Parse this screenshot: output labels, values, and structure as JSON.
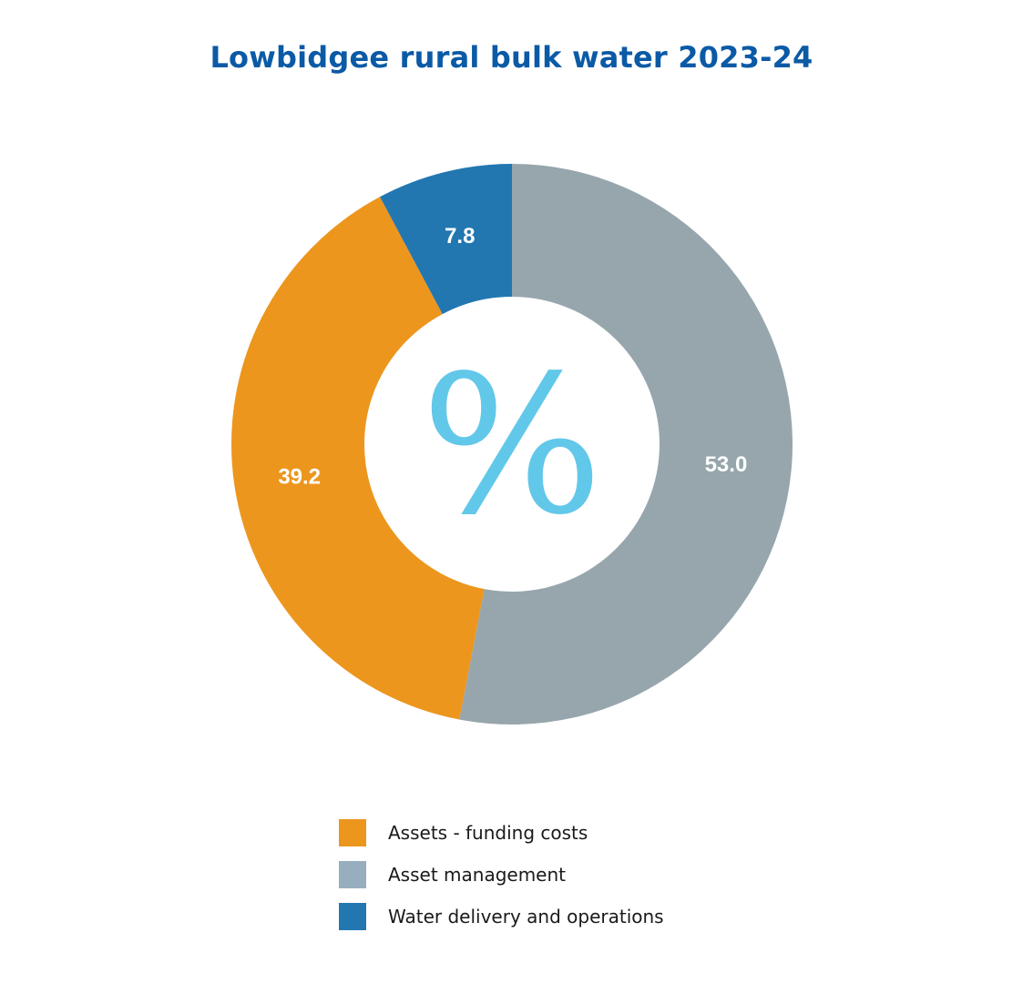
{
  "chart_data": {
    "type": "pie",
    "title": "Lowbidgee rural bulk water 2023-24",
    "center_symbol": "%",
    "slices": [
      {
        "name": "Asset management",
        "value": 53.0,
        "label": "53.0",
        "color": "#97a6ad"
      },
      {
        "name": "Assets - funding costs",
        "value": 39.2,
        "label": "39.2",
        "color": "#ec961e"
      },
      {
        "name": "Water delivery and operations",
        "value": 7.8,
        "label": "7.8",
        "color": "#2277b1"
      }
    ],
    "legend": [
      {
        "label": "Assets - funding costs",
        "color": "#ec961e"
      },
      {
        "label": "Asset management",
        "color": "#97aebf"
      },
      {
        "label": "Water delivery and operations",
        "color": "#2277b1"
      }
    ],
    "legend_position": "bottom"
  }
}
